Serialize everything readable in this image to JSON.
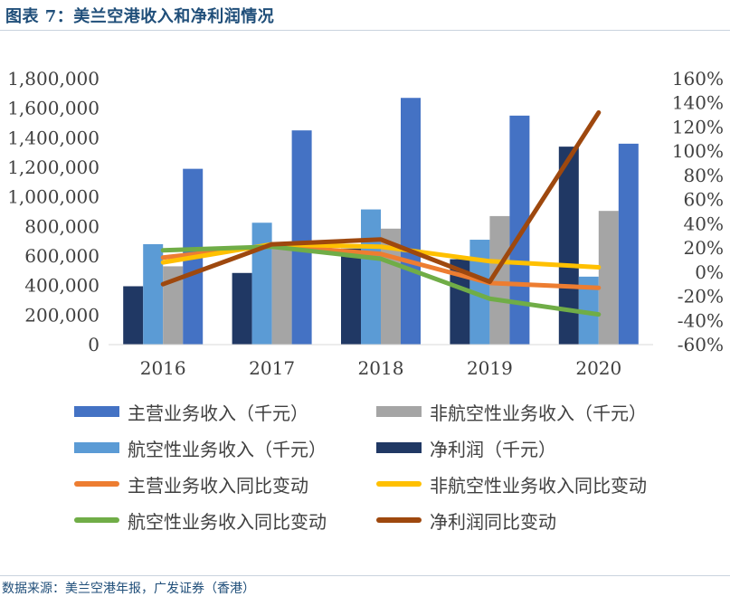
{
  "header": {
    "title": "图表 7：美兰空港收入和净利润情况"
  },
  "chart_data": {
    "type": "bar+line",
    "categories": [
      "2016",
      "2017",
      "2018",
      "2019",
      "2020"
    ],
    "left_axis": {
      "min": 0,
      "max": 1800000,
      "step": 200000,
      "ticks": [
        "0",
        "200,000",
        "400,000",
        "600,000",
        "800,000",
        "1,000,000",
        "1,200,000",
        "1,400,000",
        "1,600,000",
        "1,800,000"
      ]
    },
    "right_axis": {
      "min": -60,
      "max": 160,
      "step": 20,
      "ticks": [
        "-60%",
        "-40%",
        "-20%",
        "0%",
        "20%",
        "40%",
        "60%",
        "80%",
        "100%",
        "120%",
        "140%",
        "160%"
      ]
    },
    "bar_series": [
      {
        "name": "净利润（千元）",
        "color": "#203864",
        "values": [
          395000,
          485000,
          650000,
          578000,
          1340000
        ]
      },
      {
        "name": "航空性业务收入（千元）",
        "color": "#5b9bd5",
        "values": [
          680000,
          825000,
          915000,
          710000,
          460000
        ]
      },
      {
        "name": "非航空性业务收入（千元）",
        "color": "#a5a5a5",
        "values": [
          530000,
          650000,
          785000,
          870000,
          905000
        ]
      },
      {
        "name": "主营业务收入（千元）",
        "color": "#4472c4",
        "values": [
          1190000,
          1450000,
          1670000,
          1550000,
          1360000
        ]
      }
    ],
    "line_series": [
      {
        "name": "主营业务收入同比变动",
        "color": "#ed7d31",
        "values": [
          12,
          22,
          15,
          -9,
          -13
        ]
      },
      {
        "name": "非航空性业务收入同比变动",
        "color": "#ffc000",
        "values": [
          8,
          23,
          21,
          9,
          4
        ]
      },
      {
        "name": "航空性业务收入同比变动",
        "color": "#70ad47",
        "values": [
          18,
          21,
          11,
          -22,
          -35
        ]
      },
      {
        "name": "净利润同比变动",
        "color": "#9e480e",
        "values": [
          -10,
          23,
          27,
          -8,
          132
        ]
      }
    ],
    "legend": [
      {
        "label": "主营业务收入（千元）",
        "color": "#4472c4",
        "kind": "bar"
      },
      {
        "label": "非航空性业务收入（千元）",
        "color": "#a5a5a5",
        "kind": "bar"
      },
      {
        "label": "航空性业务收入（千元）",
        "color": "#5b9bd5",
        "kind": "bar"
      },
      {
        "label": "净利润（千元）",
        "color": "#203864",
        "kind": "bar"
      },
      {
        "label": "主营业务收入同比变动",
        "color": "#ed7d31",
        "kind": "line"
      },
      {
        "label": "非航空性业务收入同比变动",
        "color": "#ffc000",
        "kind": "line"
      },
      {
        "label": "航空性业务收入同比变动",
        "color": "#70ad47",
        "kind": "line"
      },
      {
        "label": "净利润同比变动",
        "color": "#9e480e",
        "kind": "line"
      }
    ]
  },
  "footer": {
    "source": "数据来源：美兰空港年报，广发证券（香港）"
  }
}
